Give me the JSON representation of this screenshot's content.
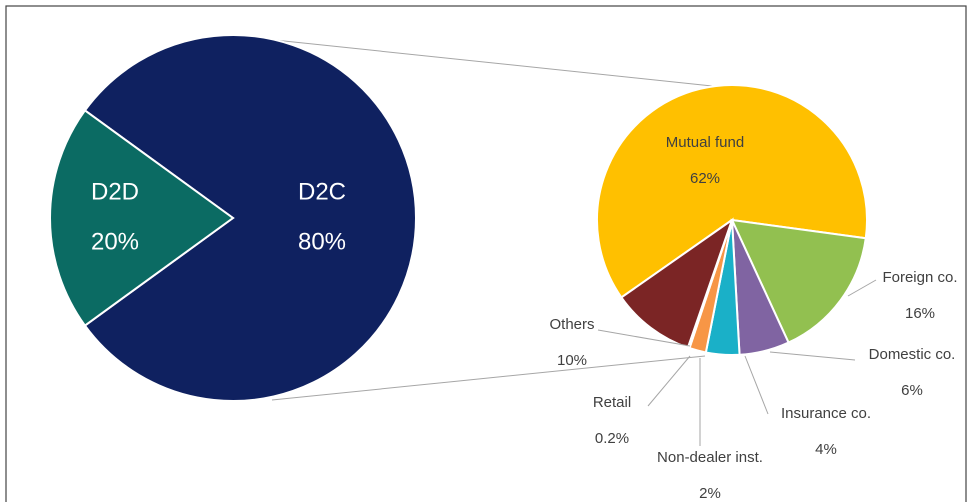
{
  "chart_data": [
    {
      "type": "pie",
      "categories": [
        "D2C",
        "D2D"
      ],
      "values": [
        80,
        20
      ],
      "value_labels": [
        "80%",
        "20%"
      ],
      "colors": [
        "#0f2160",
        "#0b6b63"
      ]
    },
    {
      "type": "pie",
      "categories": [
        "Mutual fund",
        "Foreign co.",
        "Domestic co.",
        "Insurance co.",
        "Non-dealer inst.",
        "Retail",
        "Others"
      ],
      "values": [
        62,
        16,
        6,
        4,
        2,
        0.2,
        10
      ],
      "value_labels": [
        "62%",
        "16%",
        "6%",
        "4%",
        "2%",
        "0.2%",
        "10%"
      ],
      "colors": [
        "#ffc000",
        "#92c050",
        "#8064a2",
        "#1ab0c8",
        "#f79646",
        "#ffffff",
        "#7b2525"
      ]
    }
  ]
}
